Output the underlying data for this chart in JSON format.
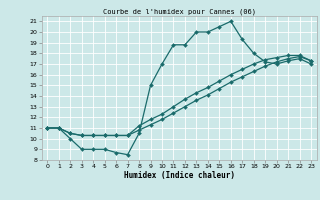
{
  "title": "Courbe de l'humidex pour Cannes (06)",
  "xlabel": "Humidex (Indice chaleur)",
  "xlim": [
    -0.5,
    23.5
  ],
  "ylim": [
    8,
    21.5
  ],
  "xticks": [
    0,
    1,
    2,
    3,
    4,
    5,
    6,
    7,
    8,
    9,
    10,
    11,
    12,
    13,
    14,
    15,
    16,
    17,
    18,
    19,
    20,
    21,
    22,
    23
  ],
  "yticks": [
    8,
    9,
    10,
    11,
    12,
    13,
    14,
    15,
    16,
    17,
    18,
    19,
    20,
    21
  ],
  "bg_color": "#cce8e8",
  "line_color": "#1a6b6b",
  "grid_color": "#ffffff",
  "lines": [
    {
      "x": [
        0,
        1,
        2,
        3,
        4,
        5,
        6,
        7,
        8,
        9,
        10,
        11,
        12,
        13,
        14,
        15,
        16,
        17,
        18,
        19,
        20,
        21,
        22,
        23
      ],
      "y": [
        11,
        11,
        10,
        9,
        9,
        9,
        8.7,
        8.5,
        10.5,
        15,
        17,
        18.8,
        18.8,
        20,
        20,
        20.5,
        21,
        19.3,
        18,
        17.2,
        17,
        17.3,
        17.5,
        17
      ]
    },
    {
      "x": [
        0,
        1,
        2,
        3,
        4,
        5,
        6,
        7,
        8,
        9,
        10,
        11,
        12,
        13,
        14,
        15,
        16,
        17,
        18,
        19,
        20,
        21,
        22,
        23
      ],
      "y": [
        11,
        11,
        10.5,
        10.3,
        10.3,
        10.3,
        10.3,
        10.3,
        10.8,
        11.3,
        11.8,
        12.4,
        13,
        13.6,
        14.1,
        14.7,
        15.3,
        15.8,
        16.3,
        16.8,
        17.2,
        17.5,
        17.7,
        17.3
      ]
    },
    {
      "x": [
        0,
        1,
        2,
        3,
        4,
        5,
        6,
        7,
        8,
        9,
        10,
        11,
        12,
        13,
        14,
        15,
        16,
        17,
        18,
        19,
        20,
        21,
        22,
        23
      ],
      "y": [
        11,
        11,
        10.5,
        10.3,
        10.3,
        10.3,
        10.3,
        10.3,
        11.2,
        11.8,
        12.3,
        13.0,
        13.7,
        14.3,
        14.8,
        15.4,
        16.0,
        16.5,
        17.0,
        17.4,
        17.6,
        17.8,
        17.8,
        17.3
      ]
    }
  ]
}
